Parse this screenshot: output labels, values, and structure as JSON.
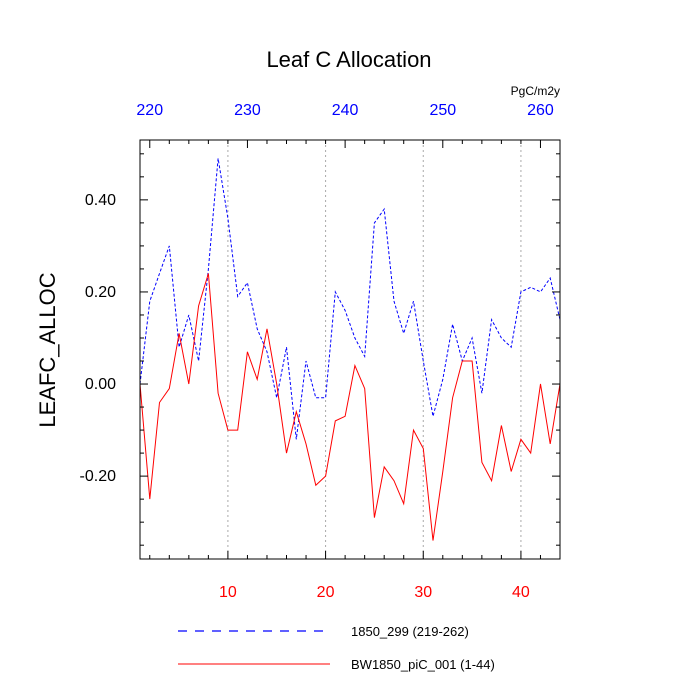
{
  "chart_data": {
    "type": "line",
    "title": "Leaf C Allocation",
    "ylabel": "LEAFC_ALLOC",
    "units": "PgC/m2y",
    "ylim": [
      -0.38,
      0.53
    ],
    "x_bottom": {
      "range": [
        1,
        44
      ],
      "ticks": [
        10,
        20,
        30,
        40
      ],
      "tick_labels": [
        "10",
        "20",
        "30",
        "40"
      ],
      "color": "#ff0000"
    },
    "x_top": {
      "range": [
        219,
        262
      ],
      "ticks": [
        220,
        230,
        240,
        250,
        260
      ],
      "tick_labels": [
        "220",
        "230",
        "240",
        "250",
        "260"
      ],
      "color": "#0000ff"
    },
    "y_ticks": [
      -0.2,
      0.0,
      0.2,
      0.4
    ],
    "y_tick_labels": [
      "-0.20",
      "0.00",
      "0.20",
      "0.40"
    ],
    "grid": "vertical dashed at major x ticks",
    "legend_position": "bottom",
    "series": [
      {
        "name": "1850_299 (219-262)",
        "axis": "top",
        "color": "#0000ff",
        "dash": "dashed",
        "x": [
          219,
          220,
          221,
          222,
          223,
          224,
          225,
          226,
          227,
          228,
          229,
          230,
          231,
          232,
          233,
          234,
          235,
          236,
          237,
          238,
          239,
          240,
          241,
          242,
          243,
          244,
          245,
          246,
          247,
          248,
          249,
          250,
          251,
          252,
          253,
          254,
          255,
          256,
          257,
          258,
          259,
          260,
          261,
          262
        ],
        "values": [
          0.0,
          0.18,
          0.24,
          0.3,
          0.08,
          0.15,
          0.05,
          0.25,
          0.49,
          0.36,
          0.19,
          0.22,
          0.12,
          0.07,
          -0.03,
          0.08,
          -0.12,
          0.05,
          -0.03,
          -0.03,
          0.2,
          0.16,
          0.1,
          0.06,
          0.35,
          0.38,
          0.18,
          0.11,
          0.18,
          0.05,
          -0.07,
          0.01,
          0.13,
          0.05,
          0.1,
          -0.02,
          0.14,
          0.1,
          0.08,
          0.2,
          0.21,
          0.2,
          0.23,
          0.14
        ]
      },
      {
        "name": "BW1850_piC_001 (1-44)",
        "axis": "bottom",
        "color": "#ff0000",
        "dash": "solid",
        "x": [
          1,
          2,
          3,
          4,
          5,
          6,
          7,
          8,
          9,
          10,
          11,
          12,
          13,
          14,
          15,
          16,
          17,
          18,
          19,
          20,
          21,
          22,
          23,
          24,
          25,
          26,
          27,
          28,
          29,
          30,
          31,
          32,
          33,
          34,
          35,
          36,
          37,
          38,
          39,
          40,
          41,
          42,
          43,
          44
        ],
        "values": [
          0.0,
          -0.25,
          -0.04,
          -0.01,
          0.11,
          0.0,
          0.17,
          0.24,
          -0.02,
          -0.1,
          -0.1,
          0.07,
          0.01,
          0.12,
          0.0,
          -0.15,
          -0.06,
          -0.13,
          -0.22,
          -0.2,
          -0.08,
          -0.07,
          0.04,
          -0.01,
          -0.29,
          -0.18,
          -0.21,
          -0.26,
          -0.1,
          -0.14,
          -0.34,
          -0.19,
          -0.03,
          0.05,
          0.05,
          -0.17,
          -0.21,
          -0.09,
          -0.19,
          -0.12,
          -0.15,
          0.0,
          -0.13,
          0.0
        ]
      }
    ]
  }
}
